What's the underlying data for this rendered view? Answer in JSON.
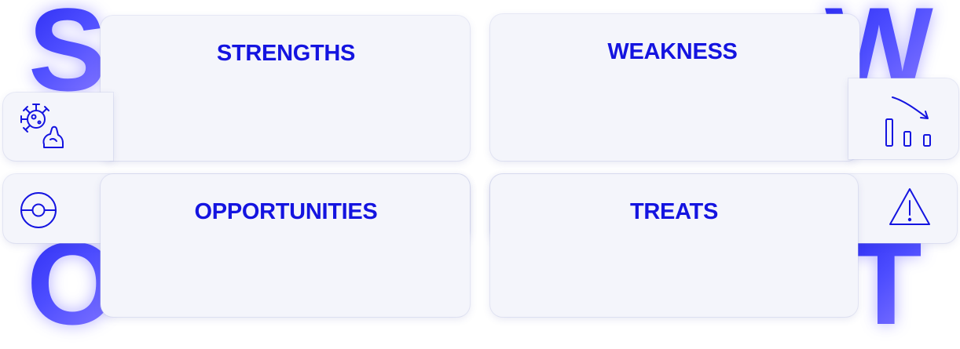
{
  "swot": {
    "letters": {
      "s": "S",
      "w": "W",
      "o": "O",
      "t": "T"
    },
    "strengths": {
      "title": "STRENGTHS",
      "icon": "virus-strength-arm-icon"
    },
    "weakness": {
      "title": "WEAKNESS",
      "icon": "declining-bars-icon"
    },
    "opportunities": {
      "title": "OPPORTUNITIES",
      "icon": "pokeball-target-icon"
    },
    "treats": {
      "title": "TREATS",
      "icon": "warning-triangle-icon"
    }
  },
  "colors": {
    "accent": "#1414e0",
    "letter_gradient_start": "#2a2af2",
    "letter_gradient_end": "#8a7cff",
    "card_background": "#f4f5fb"
  }
}
